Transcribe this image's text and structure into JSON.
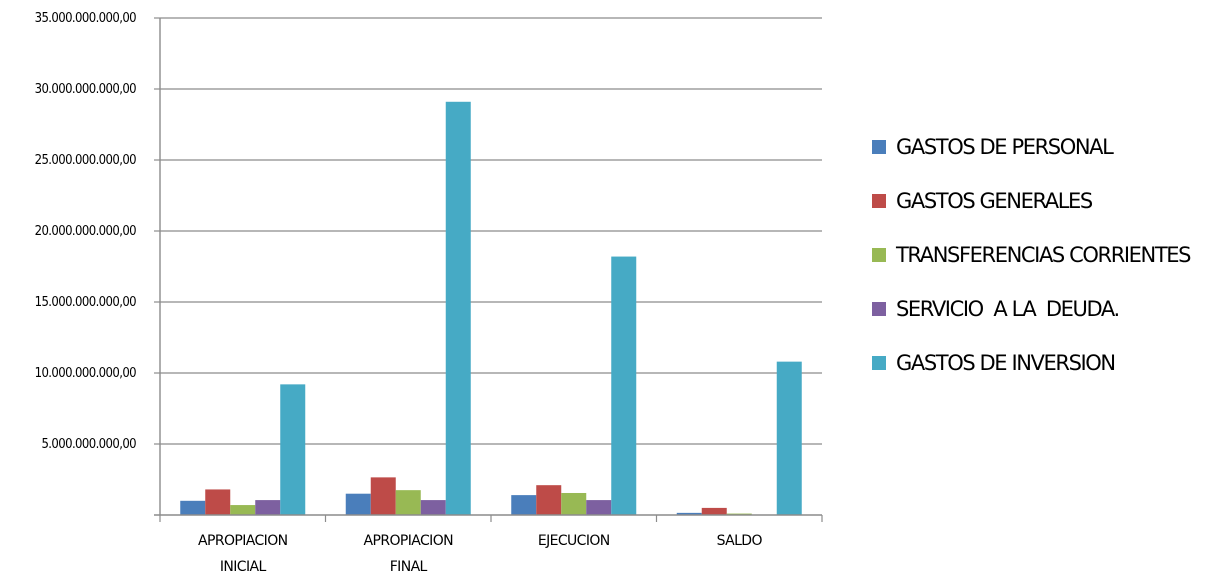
{
  "chart_data": {
    "type": "bar",
    "categories": [
      [
        "APROPIACION",
        "INICIAL"
      ],
      [
        "APROPIACION",
        "FINAL"
      ],
      [
        "EJECUCION"
      ],
      [
        "SALDO"
      ]
    ],
    "series": [
      {
        "name": "GASTOS DE PERSONAL",
        "color": "#4a7ebb",
        "values": [
          1000000000,
          1500000000,
          1400000000,
          150000000
        ]
      },
      {
        "name": "GASTOS GENERALES",
        "color": "#be4b48",
        "values": [
          1800000000,
          2650000000,
          2100000000,
          500000000
        ]
      },
      {
        "name": "TRANSFERENCIAS CORRIENTES",
        "color": "#98b954",
        "values": [
          700000000,
          1750000000,
          1550000000,
          100000000
        ]
      },
      {
        "name": "SERVICIO  A LA  DEUDA.",
        "color": "#7d60a0",
        "values": [
          1050000000,
          1050000000,
          1050000000,
          0
        ]
      },
      {
        "name": "GASTOS DE INVERSION",
        "color": "#46aac5",
        "values": [
          9200000000,
          29100000000,
          18200000000,
          10800000000
        ]
      }
    ],
    "ylim": [
      0,
      35000000000
    ],
    "yticks": [
      {
        "value": 5000000000,
        "label": "5.000.000.000,00"
      },
      {
        "value": 10000000000,
        "label": "10.000.000.000,00"
      },
      {
        "value": 15000000000,
        "label": "15.000.000.000,00"
      },
      {
        "value": 20000000000,
        "label": "20.000.000.000,00"
      },
      {
        "value": 25000000000,
        "label": "25.000.000.000,00"
      },
      {
        "value": 30000000000,
        "label": "30.000.000.000,00"
      },
      {
        "value": 35000000000,
        "label": "35.000.000.000,00"
      }
    ],
    "grid": true,
    "legend": "right",
    "title": "",
    "xlabel": "",
    "ylabel": ""
  }
}
